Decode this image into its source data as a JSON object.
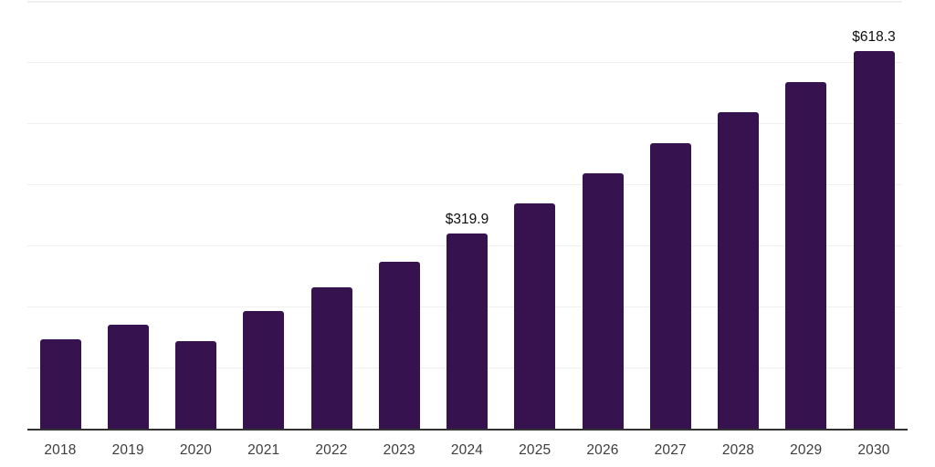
{
  "chart_data": {
    "type": "bar",
    "title": "",
    "xlabel": "",
    "ylabel": "",
    "categories": [
      "2018",
      "2019",
      "2020",
      "2021",
      "2022",
      "2023",
      "2024",
      "2025",
      "2026",
      "2027",
      "2028",
      "2029",
      "2030"
    ],
    "values": [
      146.0,
      169.9,
      144.0,
      192.0,
      232.0,
      273.0,
      319.9,
      368.4,
      417.2,
      467.4,
      517.9,
      567.8,
      618.3
    ],
    "data_labels": [
      {
        "category": "2024",
        "text": "$319.9"
      },
      {
        "category": "2030",
        "text": "$618.3"
      }
    ],
    "ylim": [
      0,
      700
    ],
    "gridline_step": 100,
    "grid": "horizontal-only",
    "legend": "none",
    "colors": {
      "bar": "#36124E",
      "axis_line": "#333333",
      "gridline": "#F0F0F0",
      "tick_label": "#3D3D3D",
      "value_label": "#0D0D0D",
      "background": "#FFFFFF"
    }
  }
}
